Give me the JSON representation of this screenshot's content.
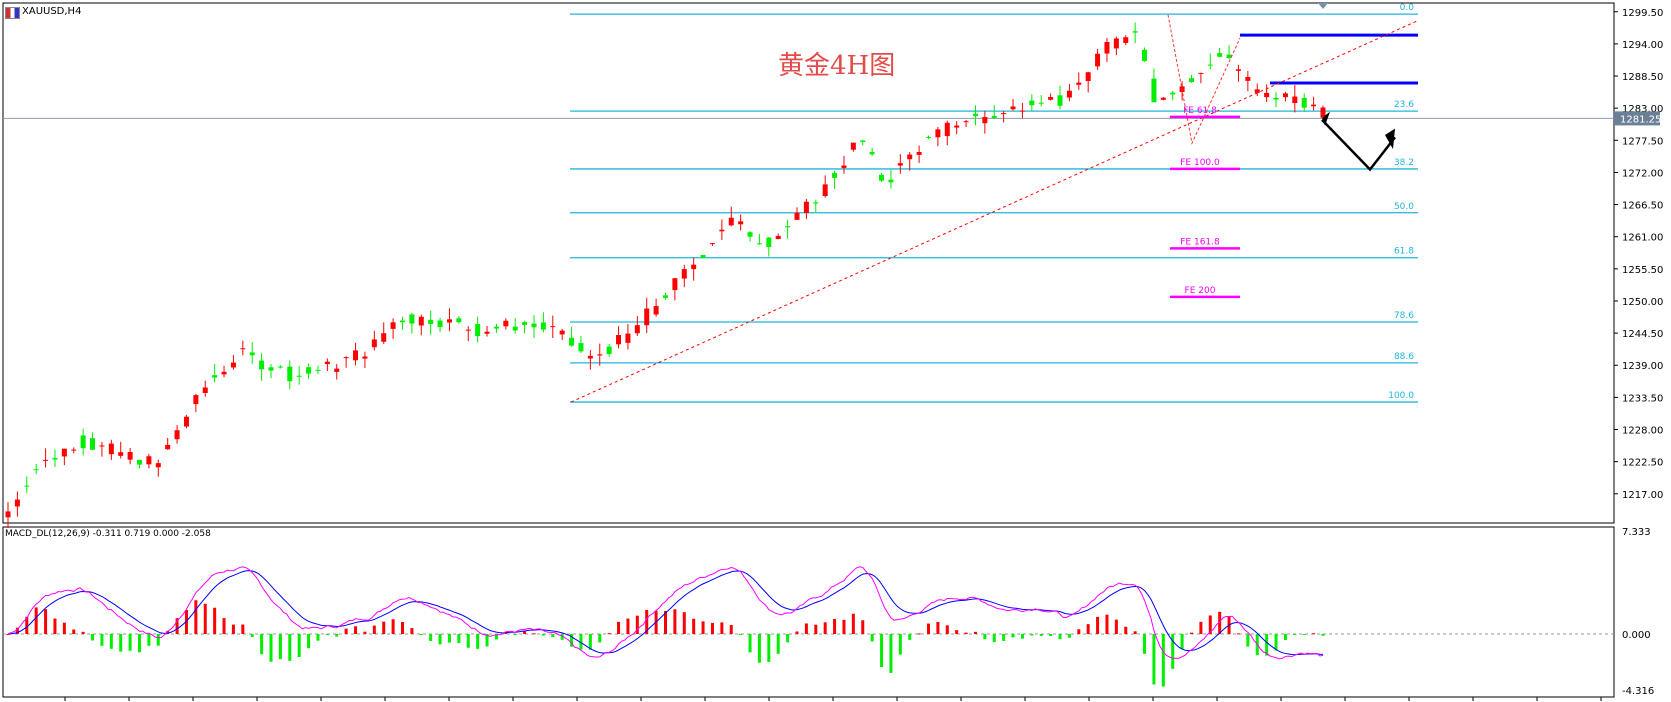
{
  "header": {
    "symbol": "XAUUSD,H4",
    "annotation": "黄金4H图"
  },
  "macd": {
    "label": "MACD_DL(12,26,9) -0.311 0.719 0.000 -2.058",
    "ticks": [
      "7.333",
      "0.000",
      "-4.316"
    ],
    "range": [
      -4.316,
      7.333
    ]
  },
  "colors": {
    "bull": "#ff0000",
    "bear": "#00ee00",
    "fib": "#1fb6d9",
    "fe": "#ff00ff",
    "level": "#0000ff",
    "trend": "#ff0000",
    "macd_line": "#0000ff",
    "signal_line": "#ff00ff"
  },
  "chart_data": {
    "type": "candlestick",
    "ylim": [
      1212.0,
      1301.0
    ],
    "y_ticks": [
      "1299.50",
      "1294.00",
      "1288.50",
      "1283.00",
      "1277.50",
      "1272.00",
      "1266.50",
      "1261.00",
      "1255.50",
      "1250.00",
      "1244.50",
      "1239.00",
      "1233.50",
      "1228.00",
      "1222.50",
      "1217.00"
    ],
    "current_price": "1281.25",
    "fib_levels": [
      {
        "label": "0.0",
        "price": 1299.1
      },
      {
        "label": "23.6",
        "price": 1282.5
      },
      {
        "label": "38.2",
        "price": 1272.6
      },
      {
        "label": "50.0",
        "price": 1265.1
      },
      {
        "label": "61.8",
        "price": 1257.4
      },
      {
        "label": "78.6",
        "price": 1246.4
      },
      {
        "label": "88.6",
        "price": 1239.4
      },
      {
        "label": "100.0",
        "price": 1232.7
      }
    ],
    "fe_levels": [
      {
        "label": "FE 61.8",
        "price": 1281.5
      },
      {
        "label": "FE 100.0",
        "price": 1272.6
      },
      {
        "label": "FE 161.8",
        "price": 1259.0
      },
      {
        "label": "FE 200",
        "price": 1250.7
      }
    ],
    "resistance_levels": [
      1295.5,
      1287.3
    ]
  }
}
